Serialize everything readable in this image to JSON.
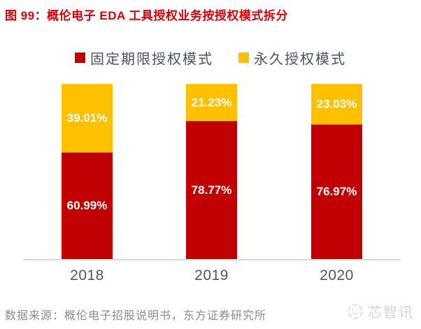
{
  "title": "图 99：概伦电子 EDA 工具授权业务按授权模式拆分",
  "source": "数据来源：概伦电子招股说明书，东方证券研究所",
  "watermark": "芯智讯",
  "colors": {
    "title_red": "#d2000a",
    "bar_red": "#c00000",
    "bar_yellow": "#ffc000",
    "axis_line": "#d9d9d9",
    "legend_text": "#4a5360",
    "axis_label_text": "#4d5666",
    "source_text": "#8b8b8b",
    "watermark_gray": "#d4d4d4",
    "value_label_text": "#ffffff"
  },
  "chart_data": {
    "type": "bar",
    "subtype": "stacked-100-percent",
    "title": "概伦电子 EDA 工具授权业务按授权模式拆分",
    "categories": [
      "2018",
      "2019",
      "2020"
    ],
    "series": [
      {
        "name": "固定期限授权模式",
        "color": "#c00000",
        "values": [
          60.99,
          78.77,
          76.97
        ],
        "labels": [
          "60.99%",
          "78.77%",
          "76.97%"
        ]
      },
      {
        "name": "永久授权模式",
        "color": "#ffc000",
        "values": [
          39.01,
          21.23,
          23.03
        ],
        "labels": [
          "39.01%",
          "21.23%",
          "23.03%"
        ]
      }
    ],
    "stack_order_top_to_bottom": [
      "永久授权模式",
      "固定期限授权模式"
    ],
    "xlabel": "",
    "ylabel": "",
    "ylim": [
      0,
      100
    ],
    "grid": false,
    "legend_position": "top",
    "value_format": "percent"
  }
}
